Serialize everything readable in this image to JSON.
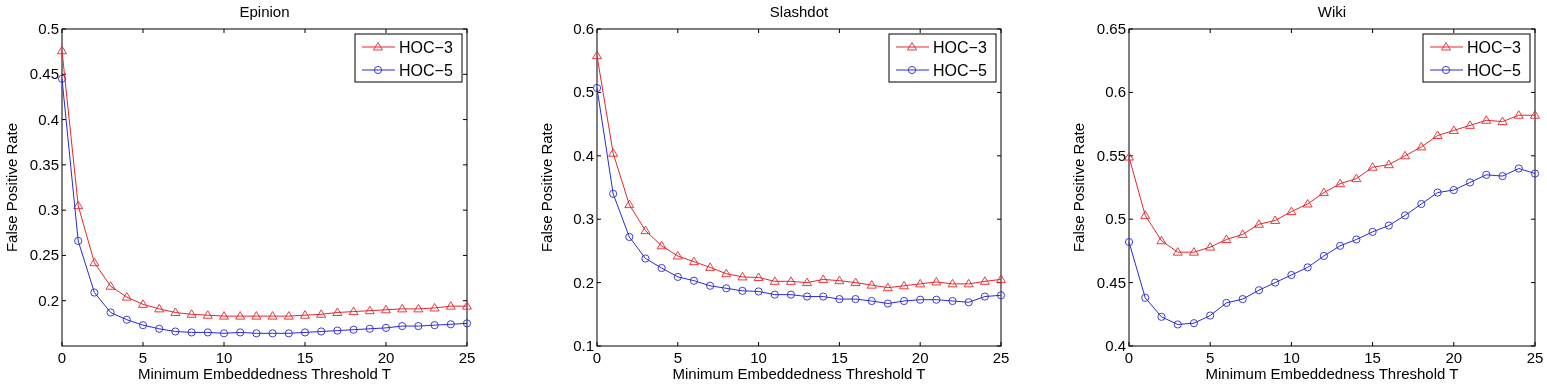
{
  "chart_data": [
    {
      "type": "line",
      "title": "Epinion",
      "xlabel": "Minimum Embeddedness Threshold T",
      "ylabel": "False Positive Rate",
      "x": [
        0,
        1,
        2,
        3,
        4,
        5,
        6,
        7,
        8,
        9,
        10,
        11,
        12,
        13,
        14,
        15,
        16,
        17,
        18,
        19,
        20,
        21,
        22,
        23,
        24,
        25
      ],
      "xlim": [
        0,
        25
      ],
      "xticks": [
        0,
        5,
        10,
        15,
        20,
        25
      ],
      "ylim": [
        0.15,
        0.5
      ],
      "yticks": [
        0.2,
        0.25,
        0.3,
        0.35,
        0.4,
        0.45,
        0.5
      ],
      "grid": false,
      "legend": "top right",
      "series": [
        {
          "name": "HOC−3",
          "color": "#e8262a",
          "marker": "triangle",
          "values": [
            0.476,
            0.305,
            0.242,
            0.216,
            0.204,
            0.196,
            0.191,
            0.187,
            0.185,
            0.184,
            0.183,
            0.183,
            0.183,
            0.183,
            0.183,
            0.184,
            0.185,
            0.187,
            0.188,
            0.189,
            0.19,
            0.191,
            0.191,
            0.192,
            0.194,
            0.194
          ]
        },
        {
          "name": "HOC−5",
          "color": "#2a2ad6",
          "marker": "circle",
          "values": [
            0.445,
            0.266,
            0.209,
            0.187,
            0.179,
            0.173,
            0.169,
            0.166,
            0.165,
            0.165,
            0.164,
            0.165,
            0.164,
            0.164,
            0.164,
            0.165,
            0.166,
            0.167,
            0.168,
            0.169,
            0.17,
            0.172,
            0.172,
            0.173,
            0.174,
            0.175
          ]
        }
      ]
    },
    {
      "type": "line",
      "title": "Slashdot",
      "xlabel": "Minimum Embeddedness Threshold T",
      "ylabel": "False Positive Rate",
      "x": [
        0,
        1,
        2,
        3,
        4,
        5,
        6,
        7,
        8,
        9,
        10,
        11,
        12,
        13,
        14,
        15,
        16,
        17,
        18,
        19,
        20,
        21,
        22,
        23,
        24,
        25
      ],
      "xlim": [
        0,
        25
      ],
      "xticks": [
        0,
        5,
        10,
        15,
        20,
        25
      ],
      "ylim": [
        0.1,
        0.6
      ],
      "yticks": [
        0.1,
        0.2,
        0.3,
        0.4,
        0.5,
        0.6
      ],
      "grid": false,
      "legend": "top right",
      "series": [
        {
          "name": "HOC−3",
          "color": "#e8262a",
          "marker": "triangle",
          "values": [
            0.558,
            0.404,
            0.323,
            0.282,
            0.258,
            0.242,
            0.233,
            0.224,
            0.214,
            0.209,
            0.208,
            0.202,
            0.202,
            0.2,
            0.205,
            0.203,
            0.2,
            0.196,
            0.192,
            0.195,
            0.198,
            0.201,
            0.198,
            0.198,
            0.202,
            0.205
          ]
        },
        {
          "name": "HOC−5",
          "color": "#2a2ad6",
          "marker": "circle",
          "values": [
            0.507,
            0.34,
            0.272,
            0.238,
            0.223,
            0.209,
            0.203,
            0.195,
            0.191,
            0.187,
            0.186,
            0.181,
            0.181,
            0.178,
            0.178,
            0.174,
            0.174,
            0.171,
            0.167,
            0.171,
            0.173,
            0.173,
            0.171,
            0.169,
            0.178,
            0.18
          ]
        }
      ]
    },
    {
      "type": "line",
      "title": "Wiki",
      "xlabel": "Minimum Embeddedness Threshold T",
      "ylabel": "False Positive Rate",
      "x": [
        0,
        1,
        2,
        3,
        4,
        5,
        6,
        7,
        8,
        9,
        10,
        11,
        12,
        13,
        14,
        15,
        16,
        17,
        18,
        19,
        20,
        21,
        22,
        23,
        24,
        25
      ],
      "xlim": [
        0,
        25
      ],
      "xticks": [
        0,
        5,
        10,
        15,
        20,
        25
      ],
      "ylim": [
        0.4,
        0.65
      ],
      "yticks": [
        0.4,
        0.45,
        0.5,
        0.55,
        0.6,
        0.65
      ],
      "grid": false,
      "legend": "top right",
      "series": [
        {
          "name": "HOC−3",
          "color": "#e8262a",
          "marker": "triangle",
          "values": [
            0.549,
            0.503,
            0.483,
            0.474,
            0.474,
            0.478,
            0.484,
            0.488,
            0.496,
            0.499,
            0.506,
            0.512,
            0.521,
            0.528,
            0.532,
            0.541,
            0.543,
            0.55,
            0.557,
            0.566,
            0.57,
            0.574,
            0.578,
            0.577,
            0.582,
            0.582
          ]
        },
        {
          "name": "HOC−5",
          "color": "#2a2ad6",
          "marker": "circle",
          "values": [
            0.482,
            0.438,
            0.423,
            0.417,
            0.418,
            0.424,
            0.434,
            0.437,
            0.444,
            0.45,
            0.456,
            0.462,
            0.471,
            0.479,
            0.484,
            0.49,
            0.495,
            0.503,
            0.512,
            0.521,
            0.523,
            0.529,
            0.535,
            0.534,
            0.54,
            0.536
          ]
        }
      ]
    }
  ]
}
